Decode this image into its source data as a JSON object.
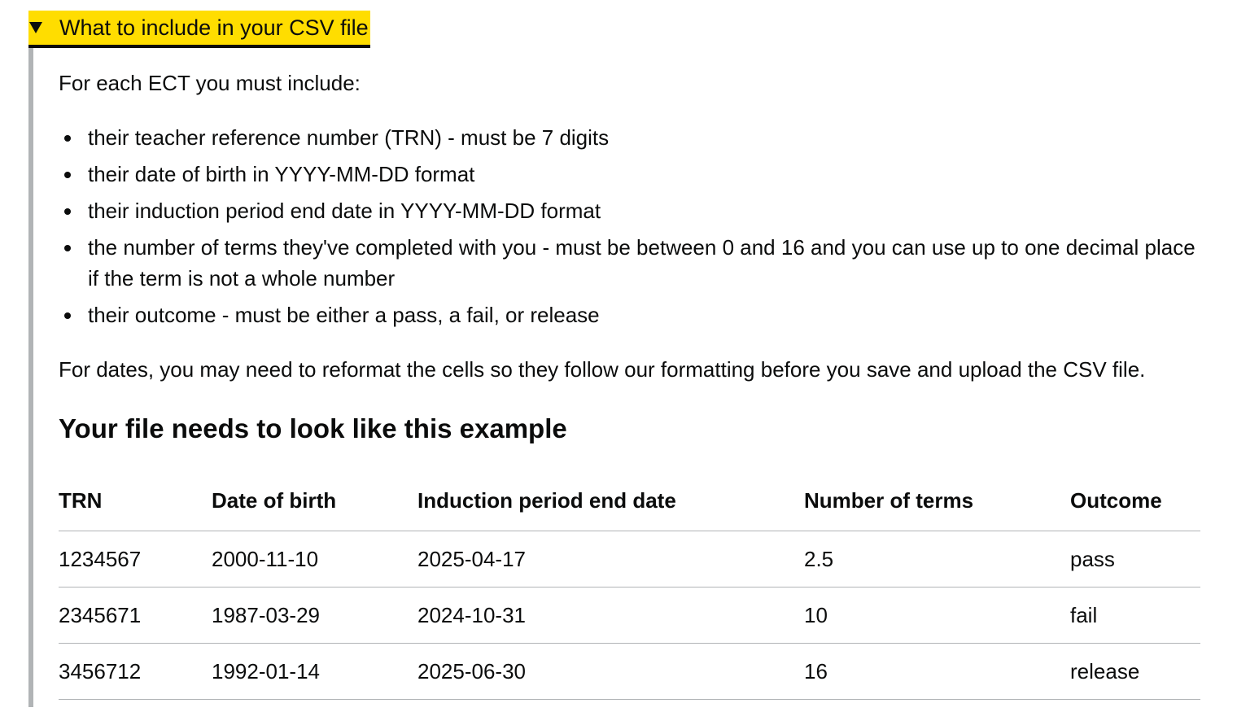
{
  "details": {
    "summary": "What to include in your CSV file",
    "arrow_icon": "triangle-down-icon",
    "accent_color": "#ffdd00",
    "border_color": "#b1b4b6",
    "intro": "For each ECT you must include:",
    "items": [
      "their teacher reference number (TRN) - must be 7 digits",
      "their date of birth in YYYY-MM-DD format",
      "their induction period end date in YYYY-MM-DD format",
      "the number of terms they've completed with you - must be between 0 and 16 and you can use up to one decimal place if the term is not a whole number",
      "their outcome - must be either a pass, a fail, or release"
    ],
    "dates_note": "For dates, you may need to reformat the cells so they follow our formatting before you save and upload the CSV file.",
    "example_heading": "Your file needs to look like this example",
    "table": {
      "headers": [
        "TRN",
        "Date of birth",
        "Induction period end date",
        "Number of terms",
        "Outcome"
      ],
      "rows": [
        [
          "1234567",
          "2000-11-10",
          "2025-04-17",
          "2.5",
          "pass"
        ],
        [
          "2345671",
          "1987-03-29",
          "2024-10-31",
          "10",
          "fail"
        ],
        [
          "3456712",
          "1992-01-14",
          "2025-06-30",
          "16",
          "release"
        ]
      ]
    }
  }
}
